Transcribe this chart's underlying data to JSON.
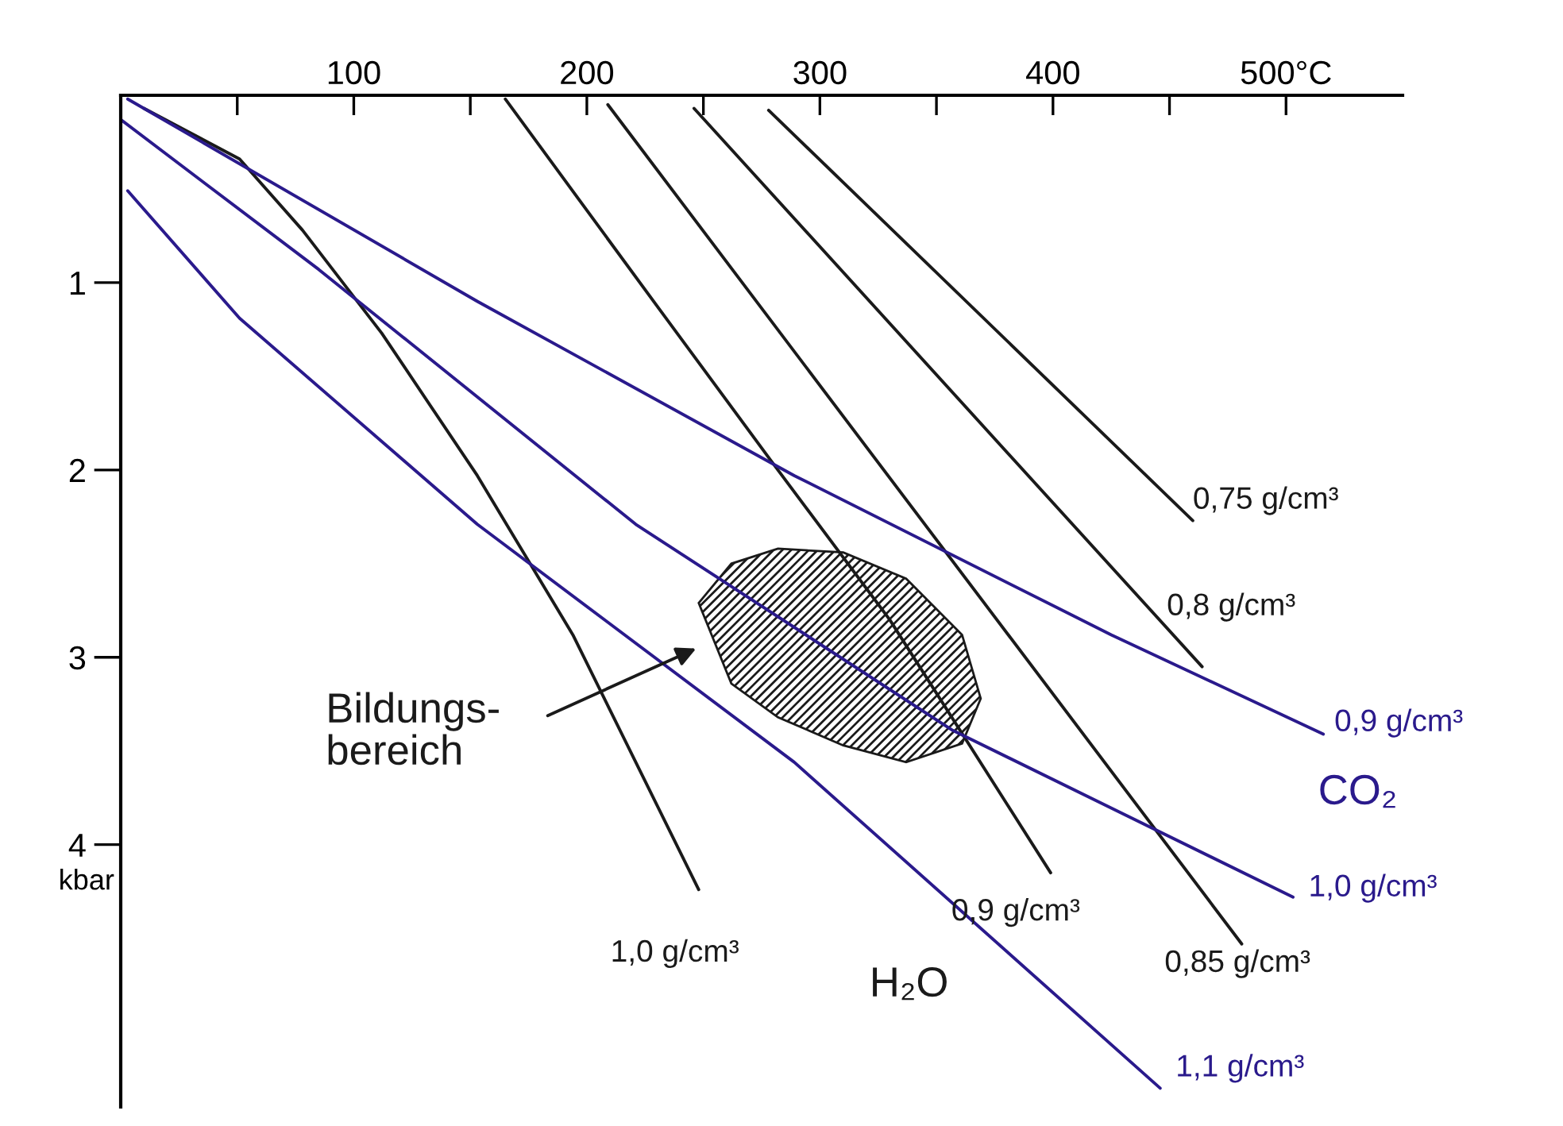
{
  "chart_data": {
    "type": "line",
    "xlim": [
      0,
      550
    ],
    "ylim": [
      5.4,
      0
    ],
    "xticks": [
      {
        "value": 50,
        "label": null
      },
      100,
      {
        "value": 150,
        "label": null
      },
      200,
      {
        "value": 250,
        "label": null
      },
      300,
      {
        "value": 350,
        "label": null
      },
      400,
      {
        "value": 450,
        "label": null
      },
      {
        "value": 500,
        "label": "500°C"
      }
    ],
    "yticks": [
      1,
      2,
      3,
      4
    ],
    "ylabel": "kbar",
    "grid": false,
    "marker": "none",
    "line_style": "solid",
    "series": [
      {
        "name": "0,75 g/cm³",
        "color": "#1a1a1a",
        "x": [
          278,
          460
        ],
        "values": [
          0.08,
          2.27
        ]
      },
      {
        "name": "0,8 g/cm³",
        "color": "#1a1a1a",
        "x": [
          246,
          464
        ],
        "values": [
          0.07,
          3.05
        ]
      },
      {
        "name": "0,85 g/cm³",
        "color": "#1a1a1a",
        "x": [
          209,
          481
        ],
        "values": [
          0.05,
          4.53
        ]
      },
      {
        "name": "0,9 g/cm³",
        "color": "#1a1a1a",
        "x": [
          165,
          231,
          279,
          330,
          399
        ],
        "values": [
          0.02,
          1.14,
          1.95,
          2.8,
          4.15
        ]
      },
      {
        "name": "1,0 g/cm³",
        "color": "#1a1a1a",
        "x": [
          10,
          51,
          78,
          112,
          153,
          194,
          248
        ],
        "values": [
          0.07,
          0.34,
          0.72,
          1.27,
          2.03,
          2.88,
          4.24
        ]
      },
      {
        "name": "0,9 g/cm³",
        "color": "#2a1a8c",
        "x": [
          3,
          153,
          289,
          425,
          516
        ],
        "values": [
          0.02,
          1.1,
          2.03,
          2.88,
          3.41
        ]
      },
      {
        "name": "1,0 g/cm³",
        "color": "#2a1a8c",
        "x": [
          0,
          85,
          221,
          357,
          503
        ],
        "values": [
          0.13,
          0.93,
          2.29,
          3.39,
          4.28
        ]
      },
      {
        "name": "1,1 g/cm³",
        "color": "#2a1a8c",
        "x": [
          3,
          51,
          153,
          289,
          446
        ],
        "values": [
          0.51,
          1.19,
          2.29,
          3.56,
          5.3
        ]
      },
      {
        "type": "area",
        "color": "#1a1a1a",
        "x": [
          248,
          262,
          282,
          310,
          337,
          361,
          369,
          361,
          337,
          310,
          282,
          262
        ],
        "values": [
          2.71,
          2.5,
          2.42,
          2.44,
          2.58,
          2.88,
          3.22,
          3.46,
          3.56,
          3.47,
          3.32,
          3.14
        ]
      }
    ],
    "annotations": [
      "Bildungs-\nbereich",
      "H₂O",
      "CO₂"
    ]
  }
}
